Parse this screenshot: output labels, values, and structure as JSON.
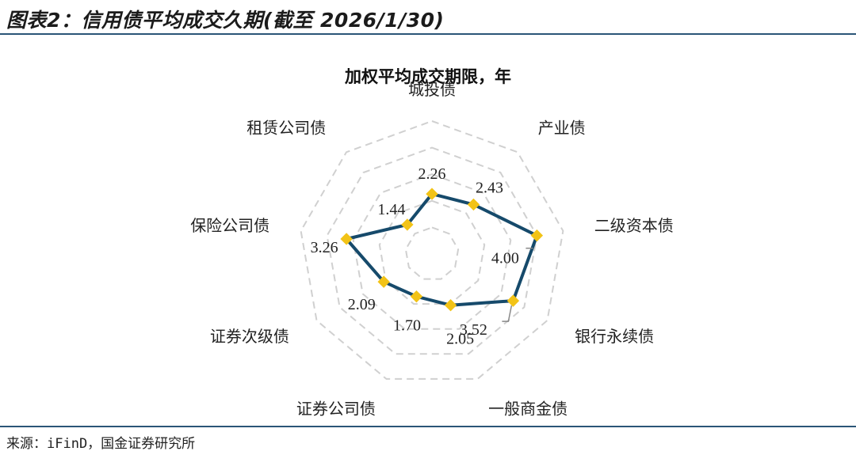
{
  "figure": {
    "title": "图表2：信用债平均成交久期(截至 2026/1/30)",
    "source": "来源：iFinD，国金证券研究所"
  },
  "colors": {
    "rule": "#2b5577",
    "series_line": "#164a6b",
    "marker": "#f2c317",
    "grid": "#d0d0d0"
  },
  "chart_data": {
    "type": "radar",
    "title": "加权平均成交期限，年",
    "categories": [
      "城投债",
      "产业债",
      "二级资本债",
      "银行永续债",
      "一般商金债",
      "证券公司债",
      "证券次级债",
      "保险公司债",
      "租赁公司债"
    ],
    "series": [
      {
        "name": "",
        "values": [
          2.26,
          2.43,
          4.0,
          3.52,
          2.05,
          1.7,
          2.09,
          3.26,
          1.44
        ]
      }
    ],
    "data_labels": [
      "2.26",
      "2.43",
      "4.00",
      "3.52",
      "2.05",
      "1.70",
      "2.09",
      "3.26",
      "1.44"
    ],
    "rlim": [
      0,
      5
    ],
    "grid": true,
    "legend": "none"
  }
}
